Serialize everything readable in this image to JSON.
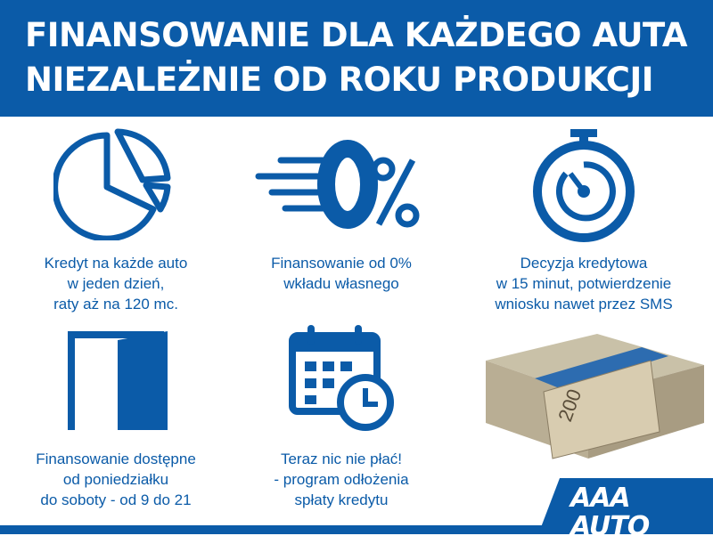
{
  "header": {
    "line1": "FINANSOWANIE DLA KAŻDEGO AUTA",
    "line2": "NIEZALEŻNIE OD ROKU PRODUKCJI"
  },
  "features": [
    {
      "icon": "pie-chart-icon",
      "lines": [
        "Kredyt na każde auto",
        "w jeden dzień,",
        "raty aż na 120 mc."
      ]
    },
    {
      "icon": "zero-percent-icon",
      "lines": [
        "Finansowanie od 0%",
        "wkładu własnego"
      ]
    },
    {
      "icon": "stopwatch-icon",
      "lines": [
        "Decyzja kredytowa",
        "w 15 minut, potwierdzenie",
        "wniosku nawet przez SMS"
      ]
    },
    {
      "icon": "open-door-icon",
      "lines": [
        "Finansowanie dostępne",
        "od poniedziałku",
        "do soboty - od 9 do 21"
      ]
    },
    {
      "icon": "calendar-clock-icon",
      "lines": [
        "Teraz nic nie płać!",
        "- program odłożenia",
        "spłaty kredytu"
      ]
    }
  ],
  "money_image": {
    "icon": "banknote-stack-icon",
    "note_value": "200"
  },
  "logo": {
    "text": "AAA AUTO"
  },
  "colors": {
    "brand_blue": "#0b5ba8"
  }
}
